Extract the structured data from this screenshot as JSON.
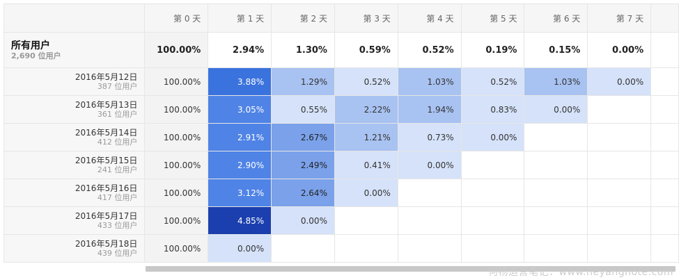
{
  "header": {
    "days": [
      "第 0 天",
      "第 1 天",
      "第 2 天",
      "第 3 天",
      "第 4 天",
      "第 5 天",
      "第 6 天",
      "第 7 天"
    ]
  },
  "summary": {
    "title": "所有用户",
    "users": "2,690 位用户",
    "values": [
      "100.00%",
      "2.94%",
      "1.30%",
      "0.59%",
      "0.52%",
      "0.19%",
      "0.15%",
      "0.00%"
    ]
  },
  "rows": [
    {
      "date": "2016年5月12日",
      "users": "387 位用户",
      "values": [
        "100.00%",
        "3.88%",
        "1.29%",
        "0.52%",
        "1.03%",
        "0.52%",
        "1.03%",
        "0.00%"
      ]
    },
    {
      "date": "2016年5月13日",
      "users": "361 位用户",
      "values": [
        "100.00%",
        "3.05%",
        "0.55%",
        "2.22%",
        "1.94%",
        "0.83%",
        "0.00%"
      ]
    },
    {
      "date": "2016年5月14日",
      "users": "412 位用户",
      "values": [
        "100.00%",
        "2.91%",
        "2.67%",
        "1.21%",
        "0.73%",
        "0.00%"
      ]
    },
    {
      "date": "2016年5月15日",
      "users": "241 位用户",
      "values": [
        "100.00%",
        "2.90%",
        "2.49%",
        "0.41%",
        "0.00%"
      ]
    },
    {
      "date": "2016年5月16日",
      "users": "417 位用户",
      "values": [
        "100.00%",
        "3.12%",
        "2.64%",
        "0.00%"
      ]
    },
    {
      "date": "2016年5月17日",
      "users": "433 位用户",
      "values": [
        "100.00%",
        "4.85%",
        "0.00%"
      ]
    },
    {
      "date": "2016年5月18日",
      "users": "439 位用户",
      "values": [
        "100.00%",
        "0.00%"
      ]
    }
  ],
  "heat_colors": {
    "lightest": "#d5e2f9",
    "light": "#a8c2f1",
    "medium": "#7aa1ea",
    "strong": "#4f83e6",
    "strongest": "#3b73de",
    "darkest": "#1b3faf"
  },
  "watermark": "何杨运营笔记：www.heyangnote.com"
}
